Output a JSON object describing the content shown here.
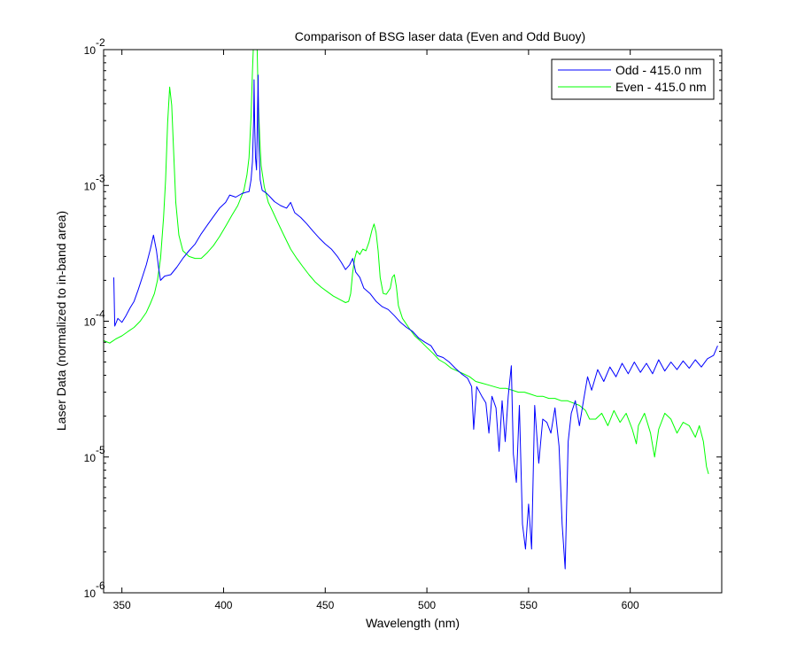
{
  "chart_data": {
    "type": "line",
    "title": "Comparison of BSG laser data (Even and Odd Buoy)",
    "xlabel": "Wavelength (nm)",
    "ylabel": "Laser Data (normalized to in-band area)",
    "xlim": [
      341,
      645
    ],
    "ylim": [
      1e-06,
      0.01
    ],
    "yscale": "log",
    "grid": false,
    "legend_position": "top-right",
    "x_ticks": [
      350,
      400,
      450,
      500,
      550,
      600
    ],
    "x_tick_labels": [
      "350",
      "400",
      "450",
      "500",
      "550",
      "600"
    ],
    "y_ticks": [
      1e-06,
      1e-05,
      0.0001,
      0.001,
      0.01
    ],
    "y_tick_labels": [
      {
        "base": "10",
        "exp": "-6"
      },
      {
        "base": "10",
        "exp": "-5"
      },
      {
        "base": "10",
        "exp": "-4"
      },
      {
        "base": "10",
        "exp": "-3"
      },
      {
        "base": "10",
        "exp": "-2"
      }
    ],
    "series": [
      {
        "name": "Odd - 415.0 nm",
        "color": "#0000ff",
        "points": [
          [
            346,
            0.00021
          ],
          [
            346.5,
            9.2e-05
          ],
          [
            348,
            0.000105
          ],
          [
            350,
            9.8e-05
          ],
          [
            352,
            0.00011
          ],
          [
            354,
            0.000125
          ],
          [
            356,
            0.00014
          ],
          [
            358,
            0.00017
          ],
          [
            360,
            0.00021
          ],
          [
            362,
            0.00026
          ],
          [
            364,
            0.00034
          ],
          [
            365.5,
            0.00043
          ],
          [
            367,
            0.00033
          ],
          [
            368,
            0.00025
          ],
          [
            369,
            0.0002
          ],
          [
            371,
            0.000215
          ],
          [
            374,
            0.00022
          ],
          [
            377,
            0.00025
          ],
          [
            380,
            0.00029
          ],
          [
            383,
            0.00033
          ],
          [
            386,
            0.00037
          ],
          [
            389,
            0.00044
          ],
          [
            392,
            0.00051
          ],
          [
            395,
            0.00059
          ],
          [
            398,
            0.00068
          ],
          [
            401,
            0.00075
          ],
          [
            403,
            0.00085
          ],
          [
            406,
            0.00082
          ],
          [
            409,
            0.00087
          ],
          [
            411,
            0.00089
          ],
          [
            412.5,
            0.0009
          ],
          [
            413.5,
            0.0011
          ],
          [
            414.2,
            0.0015
          ],
          [
            414.8,
            0.003
          ],
          [
            415,
            0.006
          ],
          [
            415.3,
            0.0028
          ],
          [
            415.7,
            0.0016
          ],
          [
            416.2,
            0.0013
          ],
          [
            416.7,
            0.0035
          ],
          [
            417,
            0.0065
          ],
          [
            417.3,
            0.0021
          ],
          [
            418,
            0.0011
          ],
          [
            419,
            0.00092
          ],
          [
            421,
            0.00088
          ],
          [
            423,
            0.00082
          ],
          [
            425,
            0.00076
          ],
          [
            428,
            0.00071
          ],
          [
            431,
            0.00068
          ],
          [
            433,
            0.00075
          ],
          [
            435,
            0.00063
          ],
          [
            438,
            0.00058
          ],
          [
            441,
            0.00052
          ],
          [
            444,
            0.00046
          ],
          [
            447,
            0.00041
          ],
          [
            450,
            0.00037
          ],
          [
            453,
            0.00034
          ],
          [
            456,
            0.0003
          ],
          [
            458,
            0.00027
          ],
          [
            460,
            0.00024
          ],
          [
            462,
            0.00026
          ],
          [
            463.5,
            0.00029
          ],
          [
            465,
            0.00023
          ],
          [
            467,
            0.00021
          ],
          [
            469,
            0.000175
          ],
          [
            472,
            0.00016
          ],
          [
            475,
            0.00014
          ],
          [
            478,
            0.000128
          ],
          [
            481,
            0.000122
          ],
          [
            484,
            0.00011
          ],
          [
            487,
            9.8e-05
          ],
          [
            490,
            9e-05
          ],
          [
            493,
            8.4e-05
          ],
          [
            496,
            7.5e-05
          ],
          [
            499,
            7e-05
          ],
          [
            502,
            6.6e-05
          ],
          [
            505,
            5.6e-05
          ],
          [
            508,
            5.4e-05
          ],
          [
            511,
            5e-05
          ],
          [
            514,
            4.5e-05
          ],
          [
            517,
            4.1e-05
          ],
          [
            520,
            3.8e-05
          ],
          [
            522,
            3.3e-05
          ],
          [
            523,
            1.6e-05
          ],
          [
            524.5,
            3.3e-05
          ],
          [
            527,
            2.8e-05
          ],
          [
            529,
            2.5e-05
          ],
          [
            530.5,
            1.5e-05
          ],
          [
            532,
            2.8e-05
          ],
          [
            534,
            2.3e-05
          ],
          [
            535.5,
            1.1e-05
          ],
          [
            537,
            2.6e-05
          ],
          [
            538.5,
            1.3e-05
          ],
          [
            540,
            2.8e-05
          ],
          [
            541.5,
            4.7e-05
          ],
          [
            542.5,
            1.05e-05
          ],
          [
            544,
            6.5e-06
          ],
          [
            545.5,
            2.4e-05
          ],
          [
            547,
            3.2e-06
          ],
          [
            548.5,
            2.1e-06
          ],
          [
            550,
            4.5e-06
          ],
          [
            551.5,
            2.1e-06
          ],
          [
            553,
            2.4e-05
          ],
          [
            555,
            9e-06
          ],
          [
            557,
            1.9e-05
          ],
          [
            559,
            1.8e-05
          ],
          [
            561,
            1.5e-05
          ],
          [
            563,
            2.3e-05
          ],
          [
            565,
            1.2e-05
          ],
          [
            566.5,
            3.2e-06
          ],
          [
            568,
            1.5e-06
          ],
          [
            569.5,
            1.3e-05
          ],
          [
            571,
            2.1e-05
          ],
          [
            573,
            2.6e-05
          ],
          [
            575,
            1.7e-05
          ],
          [
            577,
            2.6e-05
          ],
          [
            579,
            3.9e-05
          ],
          [
            581,
            3.1e-05
          ],
          [
            584,
            4.4e-05
          ],
          [
            587,
            3.6e-05
          ],
          [
            590,
            4.6e-05
          ],
          [
            593,
            3.9e-05
          ],
          [
            596,
            4.9e-05
          ],
          [
            599,
            4.1e-05
          ],
          [
            602,
            5e-05
          ],
          [
            605,
            4.2e-05
          ],
          [
            608,
            4.9e-05
          ],
          [
            611,
            4.1e-05
          ],
          [
            614,
            5.2e-05
          ],
          [
            617,
            4.3e-05
          ],
          [
            620,
            5e-05
          ],
          [
            623,
            4.4e-05
          ],
          [
            626,
            5.1e-05
          ],
          [
            629,
            4.5e-05
          ],
          [
            632,
            5.2e-05
          ],
          [
            635,
            4.6e-05
          ],
          [
            638,
            5.3e-05
          ],
          [
            641,
            5.6e-05
          ],
          [
            643,
            6.6e-05
          ]
        ]
      },
      {
        "name": "Even - 415.0 nm",
        "color": "#00ff00",
        "points": [
          [
            341,
            7.2e-05
          ],
          [
            344,
            6.9e-05
          ],
          [
            347,
            7.4e-05
          ],
          [
            350,
            7.8e-05
          ],
          [
            353,
            8.4e-05
          ],
          [
            356,
            9e-05
          ],
          [
            359,
            0.0001
          ],
          [
            362,
            0.000116
          ],
          [
            364,
            0.000135
          ],
          [
            366,
            0.00016
          ],
          [
            367.5,
            0.0002
          ],
          [
            369,
            0.00029
          ],
          [
            370.5,
            0.00058
          ],
          [
            371.5,
            0.0011
          ],
          [
            372.5,
            0.0029
          ],
          [
            373.5,
            0.0053
          ],
          [
            374.5,
            0.0039
          ],
          [
            375.5,
            0.0017
          ],
          [
            376.5,
            0.00075
          ],
          [
            378,
            0.00043
          ],
          [
            380,
            0.00033
          ],
          [
            383,
            0.0003
          ],
          [
            386,
            0.00029
          ],
          [
            389,
            0.00029
          ],
          [
            392,
            0.00032
          ],
          [
            395,
            0.00036
          ],
          [
            398,
            0.00042
          ],
          [
            401,
            0.0005
          ],
          [
            404,
            0.0006
          ],
          [
            407,
            0.00071
          ],
          [
            410,
            0.00092
          ],
          [
            411.5,
            0.0012
          ],
          [
            412.5,
            0.0016
          ],
          [
            413.5,
            0.0032
          ],
          [
            414.2,
            0.007
          ],
          [
            414.6,
            0.01
          ],
          [
            416.5,
            0.01
          ],
          [
            417,
            0.0046
          ],
          [
            417.8,
            0.0022
          ],
          [
            418.5,
            0.0014
          ],
          [
            420,
            0.00098
          ],
          [
            422,
            0.00075
          ],
          [
            424,
            0.00065
          ],
          [
            427,
            0.00052
          ],
          [
            430,
            0.00042
          ],
          [
            433,
            0.00034
          ],
          [
            436,
            0.00029
          ],
          [
            439,
            0.000252
          ],
          [
            442,
            0.00022
          ],
          [
            445,
            0.000195
          ],
          [
            448,
            0.000178
          ],
          [
            451,
            0.000165
          ],
          [
            454,
            0.000153
          ],
          [
            457,
            0.000145
          ],
          [
            460,
            0.000137
          ],
          [
            461.5,
            0.00014
          ],
          [
            462.5,
            0.00016
          ],
          [
            463.5,
            0.00023
          ],
          [
            464.5,
            0.00029
          ],
          [
            465.5,
            0.00033
          ],
          [
            467,
            0.00031
          ],
          [
            468.5,
            0.00034
          ],
          [
            470,
            0.00033
          ],
          [
            471.5,
            0.00038
          ],
          [
            473,
            0.00047
          ],
          [
            474,
            0.00052
          ],
          [
            475,
            0.00045
          ],
          [
            476,
            0.00033
          ],
          [
            477,
            0.00021
          ],
          [
            478.5,
            0.00016
          ],
          [
            480,
            0.000158
          ],
          [
            482,
            0.000175
          ],
          [
            483,
            0.00021
          ],
          [
            484,
            0.00022
          ],
          [
            485,
            0.00018
          ],
          [
            486,
            0.00013
          ],
          [
            488,
            0.000105
          ],
          [
            491,
            9e-05
          ],
          [
            494,
            7.8e-05
          ],
          [
            497,
            7.1e-05
          ],
          [
            500,
            6.4e-05
          ],
          [
            503,
            5.8e-05
          ],
          [
            506,
            5.2e-05
          ],
          [
            509,
            4.9e-05
          ],
          [
            512,
            4.5e-05
          ],
          [
            515,
            4.3e-05
          ],
          [
            518,
            4.1e-05
          ],
          [
            521,
            3.9e-05
          ],
          [
            524,
            3.6e-05
          ],
          [
            527,
            3.5e-05
          ],
          [
            530,
            3.4e-05
          ],
          [
            533,
            3.3e-05
          ],
          [
            536,
            3.2e-05
          ],
          [
            539,
            3.2e-05
          ],
          [
            542,
            3.1e-05
          ],
          [
            545,
            3e-05
          ],
          [
            548,
            3e-05
          ],
          [
            551,
            2.9e-05
          ],
          [
            554,
            2.8e-05
          ],
          [
            557,
            2.8e-05
          ],
          [
            560,
            2.7e-05
          ],
          [
            563,
            2.7e-05
          ],
          [
            566,
            2.6e-05
          ],
          [
            569,
            2.6e-05
          ],
          [
            572,
            2.5e-05
          ],
          [
            575,
            2.4e-05
          ],
          [
            578,
            2.2e-05
          ],
          [
            580,
            1.9e-05
          ],
          [
            583,
            1.9e-05
          ],
          [
            586,
            2.1e-05
          ],
          [
            589,
            1.7e-05
          ],
          [
            592,
            2.2e-05
          ],
          [
            595,
            1.8e-05
          ],
          [
            598,
            2.1e-05
          ],
          [
            601,
            1.6e-05
          ],
          [
            603,
            1.25e-05
          ],
          [
            604,
            1.7e-05
          ],
          [
            607,
            2.1e-05
          ],
          [
            610,
            1.5e-05
          ],
          [
            612,
            1e-05
          ],
          [
            614,
            1.6e-05
          ],
          [
            617,
            2.1e-05
          ],
          [
            620,
            1.9e-05
          ],
          [
            623,
            1.5e-05
          ],
          [
            626,
            1.8e-05
          ],
          [
            629,
            1.7e-05
          ],
          [
            632,
            1.4e-05
          ],
          [
            634,
            1.7e-05
          ],
          [
            636,
            1.3e-05
          ],
          [
            637.5,
            8.5e-06
          ],
          [
            638.5,
            7.5e-06
          ]
        ]
      }
    ]
  }
}
